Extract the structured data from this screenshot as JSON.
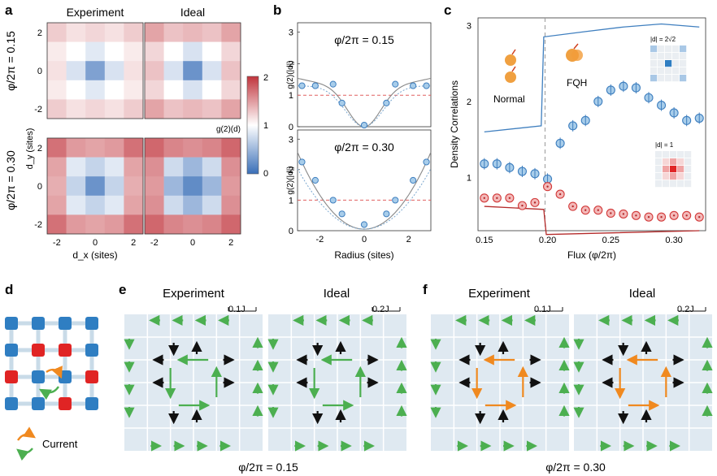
{
  "panel_letters": {
    "a": "a",
    "b": "b",
    "c": "c",
    "d": "d",
    "e": "e",
    "f": "f"
  },
  "panel_a": {
    "col_titles": [
      "Experiment",
      "Ideal"
    ],
    "row_labels": [
      "φ/2π = 0.15",
      "φ/2π = 0.30"
    ],
    "y_ticks": [
      "2",
      "0",
      "-2"
    ],
    "x_ticks": [
      "-2",
      "0",
      "2"
    ],
    "xlabel": "d_x (sites)",
    "ylabel": "d_y (sites)",
    "colorbar": {
      "ticks": [
        "2",
        "1",
        "0"
      ],
      "label": "g(2)(d)",
      "range": [
        0,
        2
      ]
    },
    "maps": [
      [
        [
          1.25,
          1.15,
          1.2,
          1.15,
          1.25
        ],
        [
          1.1,
          1.0,
          0.85,
          1.0,
          1.1
        ],
        [
          1.15,
          0.8,
          0.35,
          0.8,
          1.15
        ],
        [
          1.1,
          1.0,
          0.85,
          1.0,
          1.1
        ],
        [
          1.25,
          1.15,
          1.2,
          1.15,
          1.25
        ]
      ],
      [
        [
          1.45,
          1.3,
          1.35,
          1.3,
          1.45
        ],
        [
          1.2,
          1.0,
          0.8,
          1.0,
          1.2
        ],
        [
          1.3,
          0.8,
          0.25,
          0.8,
          1.3
        ],
        [
          1.2,
          1.0,
          0.8,
          1.0,
          1.2
        ],
        [
          1.45,
          1.3,
          1.35,
          1.3,
          1.45
        ]
      ],
      [
        [
          1.7,
          1.5,
          1.45,
          1.5,
          1.7
        ],
        [
          1.45,
          0.85,
          0.7,
          0.85,
          1.45
        ],
        [
          1.4,
          0.7,
          0.25,
          0.7,
          1.4
        ],
        [
          1.45,
          0.85,
          0.7,
          0.85,
          1.45
        ],
        [
          1.7,
          1.5,
          1.45,
          1.5,
          1.7
        ]
      ],
      [
        [
          1.75,
          1.6,
          1.55,
          1.6,
          1.75
        ],
        [
          1.55,
          0.75,
          0.5,
          0.75,
          1.55
        ],
        [
          1.5,
          0.5,
          0.2,
          0.5,
          1.5
        ],
        [
          1.55,
          0.75,
          0.5,
          0.75,
          1.55
        ],
        [
          1.75,
          1.6,
          1.55,
          1.6,
          1.75
        ]
      ]
    ]
  },
  "panel_b": {
    "titles": [
      "φ/2π = 0.15",
      "φ/2π = 0.30"
    ],
    "ylabel": "g(2)(|d|)",
    "xlabel": "Radius (sites)",
    "y_ticks": [
      "3",
      "2",
      "1",
      "0"
    ],
    "x_ticks": [
      "-2",
      "0",
      "2"
    ]
  },
  "panel_c": {
    "ylabel": "Density Correlations",
    "xlabel": "Flux (φ/2π)",
    "y_ticks": [
      "3",
      "2",
      "1"
    ],
    "x_ticks": [
      "0.15",
      "0.20",
      "0.25",
      "0.30"
    ],
    "label_normal": "Normal",
    "label_fqh": "FQH",
    "inset_top": "|d| = 2√2",
    "inset_bottom": "|d| = 1"
  },
  "panel_d": {
    "legend": "Current"
  },
  "panel_e": {
    "titles": [
      "Experiment",
      "Ideal"
    ],
    "scales": [
      "0.1J",
      "0.2J"
    ],
    "caption": "φ/2π = 0.15"
  },
  "panel_f": {
    "titles": [
      "Experiment",
      "Ideal"
    ],
    "scales": [
      "0.1J",
      "0.2J"
    ],
    "caption": "φ/2π = 0.30"
  },
  "colors": {
    "blue": "#3f7fbf",
    "red": "#d23a3a",
    "green": "#4caf50",
    "orange": "#f0891f",
    "grid_bg": "#dfe9f1",
    "lattice_blue": "#2f7ec2",
    "lattice_red": "#e02424"
  },
  "chart_data": [
    {
      "type": "scatter",
      "title": "φ/2π = 0.15",
      "xlabel": "Radius (sites)",
      "ylabel": "g(2)(|d|)",
      "xlim": [
        -3,
        3
      ],
      "ylim": [
        0,
        3.3
      ],
      "series": [
        {
          "values_x": [
            -2.8,
            -2.2,
            -1.4,
            -1.0,
            0.0,
            1.0,
            1.4,
            2.2,
            2.8
          ],
          "values_y": [
            1.3,
            1.3,
            1.35,
            0.75,
            0.05,
            0.75,
            1.35,
            1.3,
            1.3
          ]
        }
      ]
    },
    {
      "type": "scatter",
      "title": "φ/2π = 0.30",
      "xlabel": "Radius (sites)",
      "ylabel": "g(2)(|d|)",
      "xlim": [
        -3,
        3
      ],
      "ylim": [
        0,
        3.3
      ],
      "series": [
        {
          "values_x": [
            -2.8,
            -2.2,
            -1.4,
            -1.0,
            0.0,
            1.0,
            1.4,
            2.2,
            2.8
          ],
          "values_y": [
            2.25,
            1.65,
            1.0,
            0.55,
            0.2,
            0.55,
            1.0,
            1.65,
            2.25
          ]
        }
      ]
    },
    {
      "type": "scatter",
      "xlabel": "Flux (φ/2π)",
      "ylabel": "Density Correlations",
      "xlim": [
        0.145,
        0.325
      ],
      "ylim": [
        0.3,
        3.1
      ],
      "series": [
        {
          "x": [
            0.15,
            0.16,
            0.17,
            0.18,
            0.19,
            0.2,
            0.21,
            0.22,
            0.23,
            0.24,
            0.25,
            0.26,
            0.27,
            0.28,
            0.29,
            0.3,
            0.31,
            0.32
          ],
          "y": [
            1.18,
            1.18,
            1.13,
            1.08,
            1.05,
            0.98,
            1.45,
            1.68,
            1.75,
            2.0,
            2.15,
            2.2,
            2.18,
            2.05,
            1.95,
            1.85,
            1.75,
            1.78
          ]
        },
        {
          "x": [
            0.15,
            0.16,
            0.17,
            0.18,
            0.19,
            0.2,
            0.21,
            0.22,
            0.23,
            0.24,
            0.25,
            0.26,
            0.27,
            0.28,
            0.29,
            0.3,
            0.31,
            0.32
          ],
          "y": [
            0.73,
            0.73,
            0.73,
            0.63,
            0.67,
            0.88,
            0.78,
            0.62,
            0.57,
            0.57,
            0.53,
            0.52,
            0.5,
            0.48,
            0.48,
            0.5,
            0.5,
            0.48
          ]
        }
      ]
    }
  ]
}
